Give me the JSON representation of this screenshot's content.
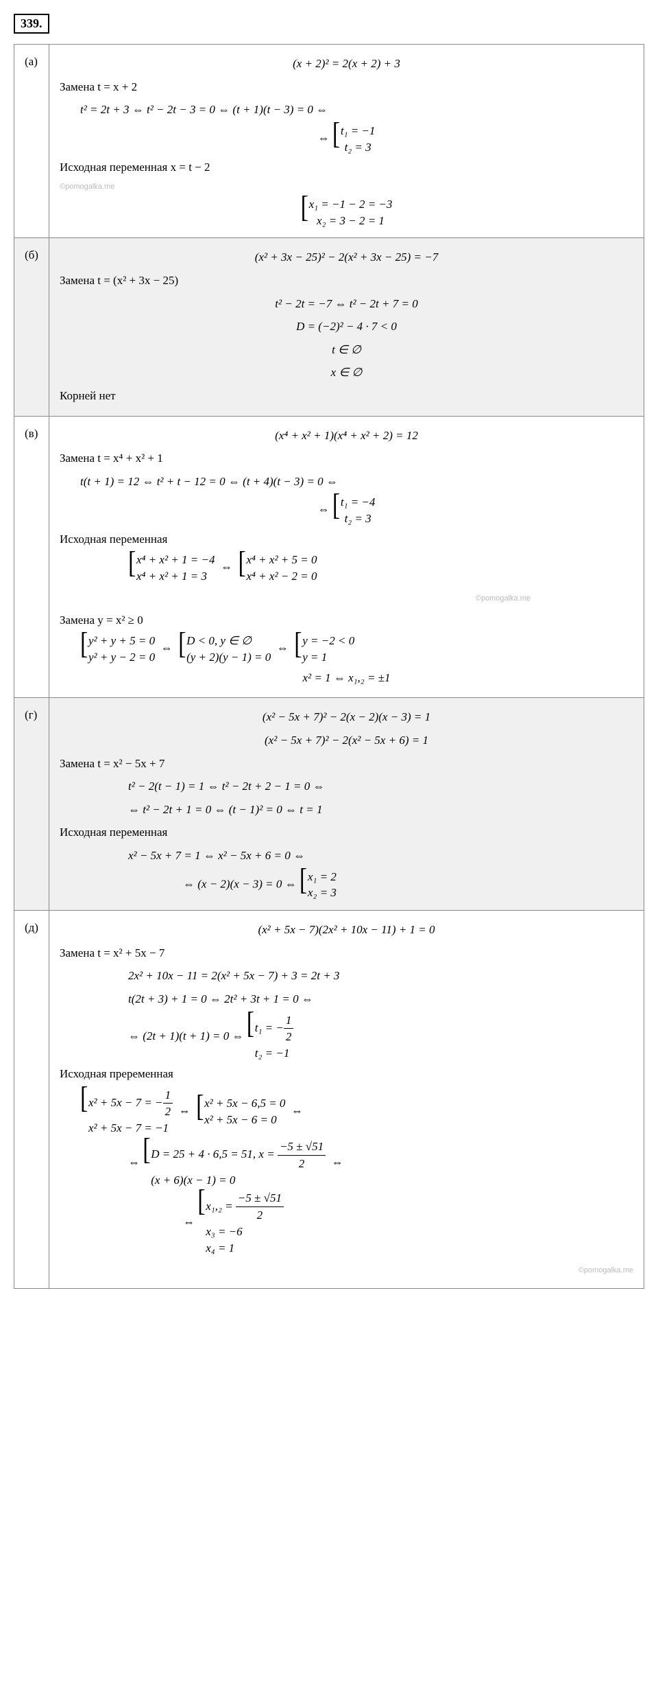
{
  "problem_number": "339.",
  "watermark": "©pomogalka.me",
  "parts": {
    "a": {
      "label": "(а)",
      "shaded": false,
      "equation": "(x + 2)² = 2(x + 2) + 3",
      "substitution": "Замена t = x + 2",
      "work1": "t² = 2t + 3 ⇔ t² − 2t − 3 = 0 ⇔ (t + 1)(t − 3) = 0 ⇔",
      "t1": "t₁ = −1",
      "t2": "t₂ = 3",
      "back_sub": "Исходная переменная x = t − 2",
      "x1": "x₁ = −1 − 2 = −3",
      "x2": "x₂ = 3 − 2 = 1"
    },
    "b": {
      "label": "(б)",
      "shaded": true,
      "equation": "(x² + 3x − 25)² − 2(x² + 3x − 25) = −7",
      "substitution": "Замена t = (x² + 3x − 25)",
      "work1": "t² − 2t = −7 ⇔ t² − 2t + 7 = 0",
      "work2": "D = (−2)² − 4 · 7 < 0",
      "work3": "t ∈ ∅",
      "work4": "x ∈ ∅",
      "conclusion": "Корней нет"
    },
    "c": {
      "label": "(в)",
      "shaded": false,
      "equation": "(x⁴ + x² + 1)(x⁴ + x² + 2) = 12",
      "substitution": "Замена t = x⁴ + x² + 1",
      "work1": "t(t + 1) = 12 ⇔ t² + t − 12 = 0 ⇔ (t + 4)(t − 3) = 0 ⇔",
      "t1": "t₁ = −4",
      "t2": "t₂ = 3",
      "back_sub": "Исходная переменная",
      "sys1a": "x⁴ + x² + 1 = −4",
      "sys1b": "x⁴ + x² + 1 = 3",
      "sys2a": "x⁴ + x² + 5 = 0",
      "sys2b": "x⁴ + x² − 2 = 0",
      "sub2": "Замена y = x² ≥ 0",
      "sys3a": "y² + y + 5 = 0",
      "sys3b": "y² + y − 2 = 0",
      "sys4a": "D < 0, y ∈ ∅",
      "sys4b": "(y + 2)(y − 1) = 0",
      "sys5a": "y = −2 < 0",
      "sys5b": "y = 1",
      "final": "x² = 1 ⇔ x₁,₂ = ±1"
    },
    "d": {
      "label": "(г)",
      "shaded": true,
      "equation": "(x² − 5x + 7)² − 2(x − 2)(x − 3) = 1",
      "equation2": "(x² − 5x + 7)² − 2(x² − 5x + 6) = 1",
      "substitution": "Замена t = x² − 5x + 7",
      "work1": "t² − 2(t − 1) = 1 ⇔ t² − 2t + 2 − 1 = 0 ⇔",
      "work2": "⇔ t² − 2t + 1 = 0 ⇔ (t − 1)² = 0 ⇔ t = 1",
      "back_sub": "Исходная переменная",
      "work3": "x² − 5x + 7 = 1 ⇔ x² − 5x + 6 = 0 ⇔",
      "work4": "⇔ (x − 2)(x − 3) = 0 ⇔",
      "x1": "x₁ = 2",
      "x2": "x₂ = 3"
    },
    "e": {
      "label": "(д)",
      "shaded": false,
      "equation": "(x² + 5x − 7)(2x² + 10x − 11) + 1 = 0",
      "substitution": "Замена t = x² + 5x − 7",
      "work1": "2x² + 10x − 11 = 2(x² + 5x − 7) + 3 = 2t + 3",
      "work2": "t(2t + 3) + 1 = 0 ⇔ 2t² + 3t + 1 = 0 ⇔",
      "work3": "⇔ (2t + 1)(t + 1) = 0 ⇔",
      "t1_text": "t₁ = −",
      "t1_num": "1",
      "t1_den": "2",
      "t2": "t₂ = −1",
      "back_sub": "Исходная преременная",
      "sys1a_text": "x² + 5x − 7 = −",
      "sys1a_num": "1",
      "sys1a_den": "2",
      "sys1b": "x² + 5x − 7 = −1",
      "sys2a": "x² + 5x − 6,5 = 0",
      "sys2b": "x² + 5x − 6 = 0",
      "work4_text": "D = 25 + 4 · 6,5 = 51, x =",
      "work4_num": "−5 ± √51",
      "work4_den": "2",
      "work5": "(x + 6)(x − 1) = 0",
      "x12_text": "x₁,₂ =",
      "x12_num": "−5 ± √51",
      "x12_den": "2",
      "x3": "x₃ = −6",
      "x4": "x₄ = 1"
    }
  }
}
